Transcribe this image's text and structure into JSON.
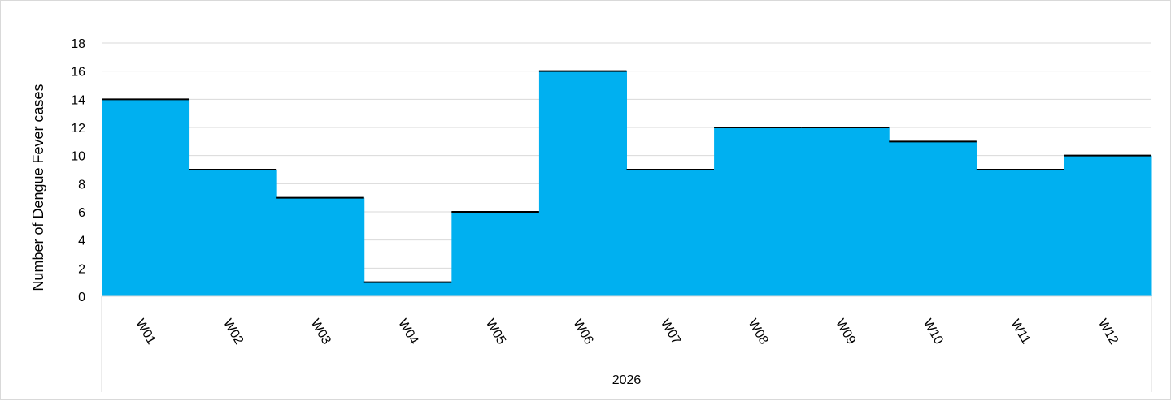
{
  "chart_data": {
    "type": "bar",
    "categories": [
      "W01",
      "W02",
      "W03",
      "W04",
      "W05",
      "W06",
      "W07",
      "W08",
      "W09",
      "W10",
      "W11",
      "W12"
    ],
    "values": [
      14,
      9,
      7,
      1,
      6,
      16,
      9,
      12,
      12,
      11,
      9,
      10
    ],
    "group_label": "2026",
    "title": "",
    "xlabel": "",
    "ylabel": "Number of Dengue Fever  cases",
    "ylim": [
      0,
      18
    ],
    "yticks": [
      0,
      2,
      4,
      6,
      8,
      10,
      12,
      14,
      16,
      18
    ],
    "grid": true,
    "legend": "none",
    "bar_color": "#00B0F0",
    "grid_color": "#d9d9d9"
  }
}
